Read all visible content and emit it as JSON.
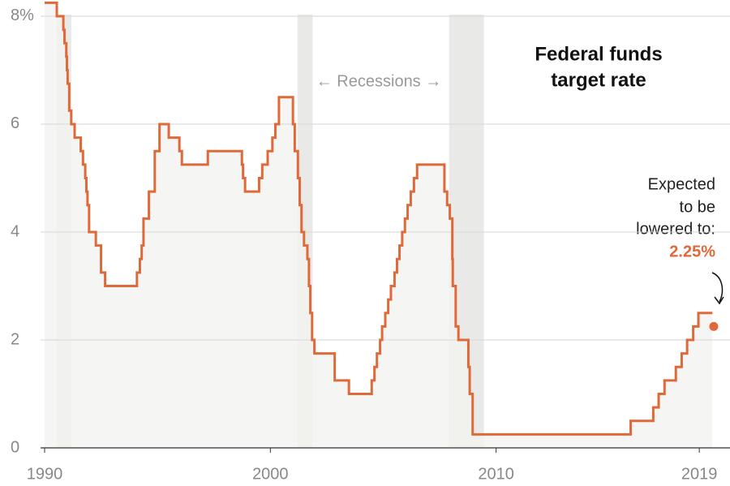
{
  "chart_data": {
    "type": "step",
    "title": [
      "Federal funds",
      "target rate"
    ],
    "recession_label": "← Recessions →",
    "annotation": [
      "Expected",
      "to be",
      "lowered to:"
    ],
    "recessions": [
      [
        1990.54,
        1991.18
      ],
      [
        2001.2,
        2001.87
      ],
      [
        2007.92,
        2009.46
      ]
    ],
    "series": [
      {
        "color": "#e0693a",
        "x": [
          1990.0,
          1990.54,
          1990.83,
          1990.88,
          1990.96,
          1990.99,
          1991.02,
          1991.09,
          1991.18,
          1991.33,
          1991.6,
          1991.7,
          1991.8,
          1991.85,
          1991.9,
          1991.97,
          1992.27,
          1992.5,
          1992.68,
          1994.09,
          1994.22,
          1994.3,
          1994.38,
          1994.62,
          1994.88,
          1995.09,
          1995.5,
          1995.97,
          1996.08,
          1997.23,
          1998.74,
          1998.79,
          1998.88,
          1999.5,
          1999.64,
          1999.88,
          2000.09,
          2000.22,
          2000.38,
          2001.0,
          2001.08,
          2001.22,
          2001.3,
          2001.38,
          2001.49,
          2001.64,
          2001.71,
          2001.77,
          2001.85,
          2001.95,
          2002.85,
          2003.48,
          2004.49,
          2004.61,
          2004.72,
          2004.86,
          2004.95,
          2005.09,
          2005.22,
          2005.34,
          2005.5,
          2005.61,
          2005.72,
          2005.84,
          2005.96,
          2006.08,
          2006.22,
          2006.36,
          2006.5,
          2007.71,
          2007.83,
          2007.95,
          2008.06,
          2008.08,
          2008.21,
          2008.33,
          2008.77,
          2008.83,
          2008.96,
          2015.96,
          2016.96,
          2017.2,
          2017.46,
          2017.96,
          2018.22,
          2018.46,
          2018.73,
          2018.96,
          2019.58
        ],
        "values": [
          8.25,
          8.0,
          7.75,
          7.5,
          7.25,
          7.0,
          6.75,
          6.25,
          6.0,
          5.75,
          5.5,
          5.25,
          5.0,
          4.75,
          4.5,
          4.0,
          3.75,
          3.25,
          3.0,
          3.25,
          3.5,
          3.75,
          4.25,
          4.75,
          5.5,
          6.0,
          5.75,
          5.5,
          5.25,
          5.5,
          5.25,
          5.0,
          4.75,
          5.0,
          5.25,
          5.5,
          5.75,
          6.0,
          6.5,
          6.0,
          5.5,
          5.0,
          4.5,
          4.0,
          3.75,
          3.5,
          3.0,
          2.5,
          2.0,
          1.75,
          1.25,
          1.0,
          1.25,
          1.5,
          1.75,
          2.0,
          2.25,
          2.5,
          2.75,
          3.0,
          3.25,
          3.5,
          3.75,
          4.0,
          4.25,
          4.5,
          4.75,
          5.0,
          5.25,
          4.75,
          4.5,
          4.25,
          3.5,
          3.0,
          2.25,
          2.0,
          1.5,
          1.0,
          0.25,
          0.5,
          0.75,
          1.0,
          1.25,
          1.5,
          1.75,
          2.0,
          2.25,
          2.5,
          2.5
        ]
      },
      {
        "color": "#e0693a",
        "x": [
          2019.64
        ],
        "values": [
          2.25
        ],
        "value_labels": [
          "2.25%"
        ]
      }
    ],
    "xlim": [
      1990,
      2020.36
    ],
    "xticks": [
      1990,
      2000,
      2010,
      2019
    ],
    "ylim": [
      0,
      8.3
    ],
    "yticks": [
      0,
      2,
      4,
      6,
      {
        "value": 8,
        "label": "8%"
      }
    ],
    "grid": true
  }
}
